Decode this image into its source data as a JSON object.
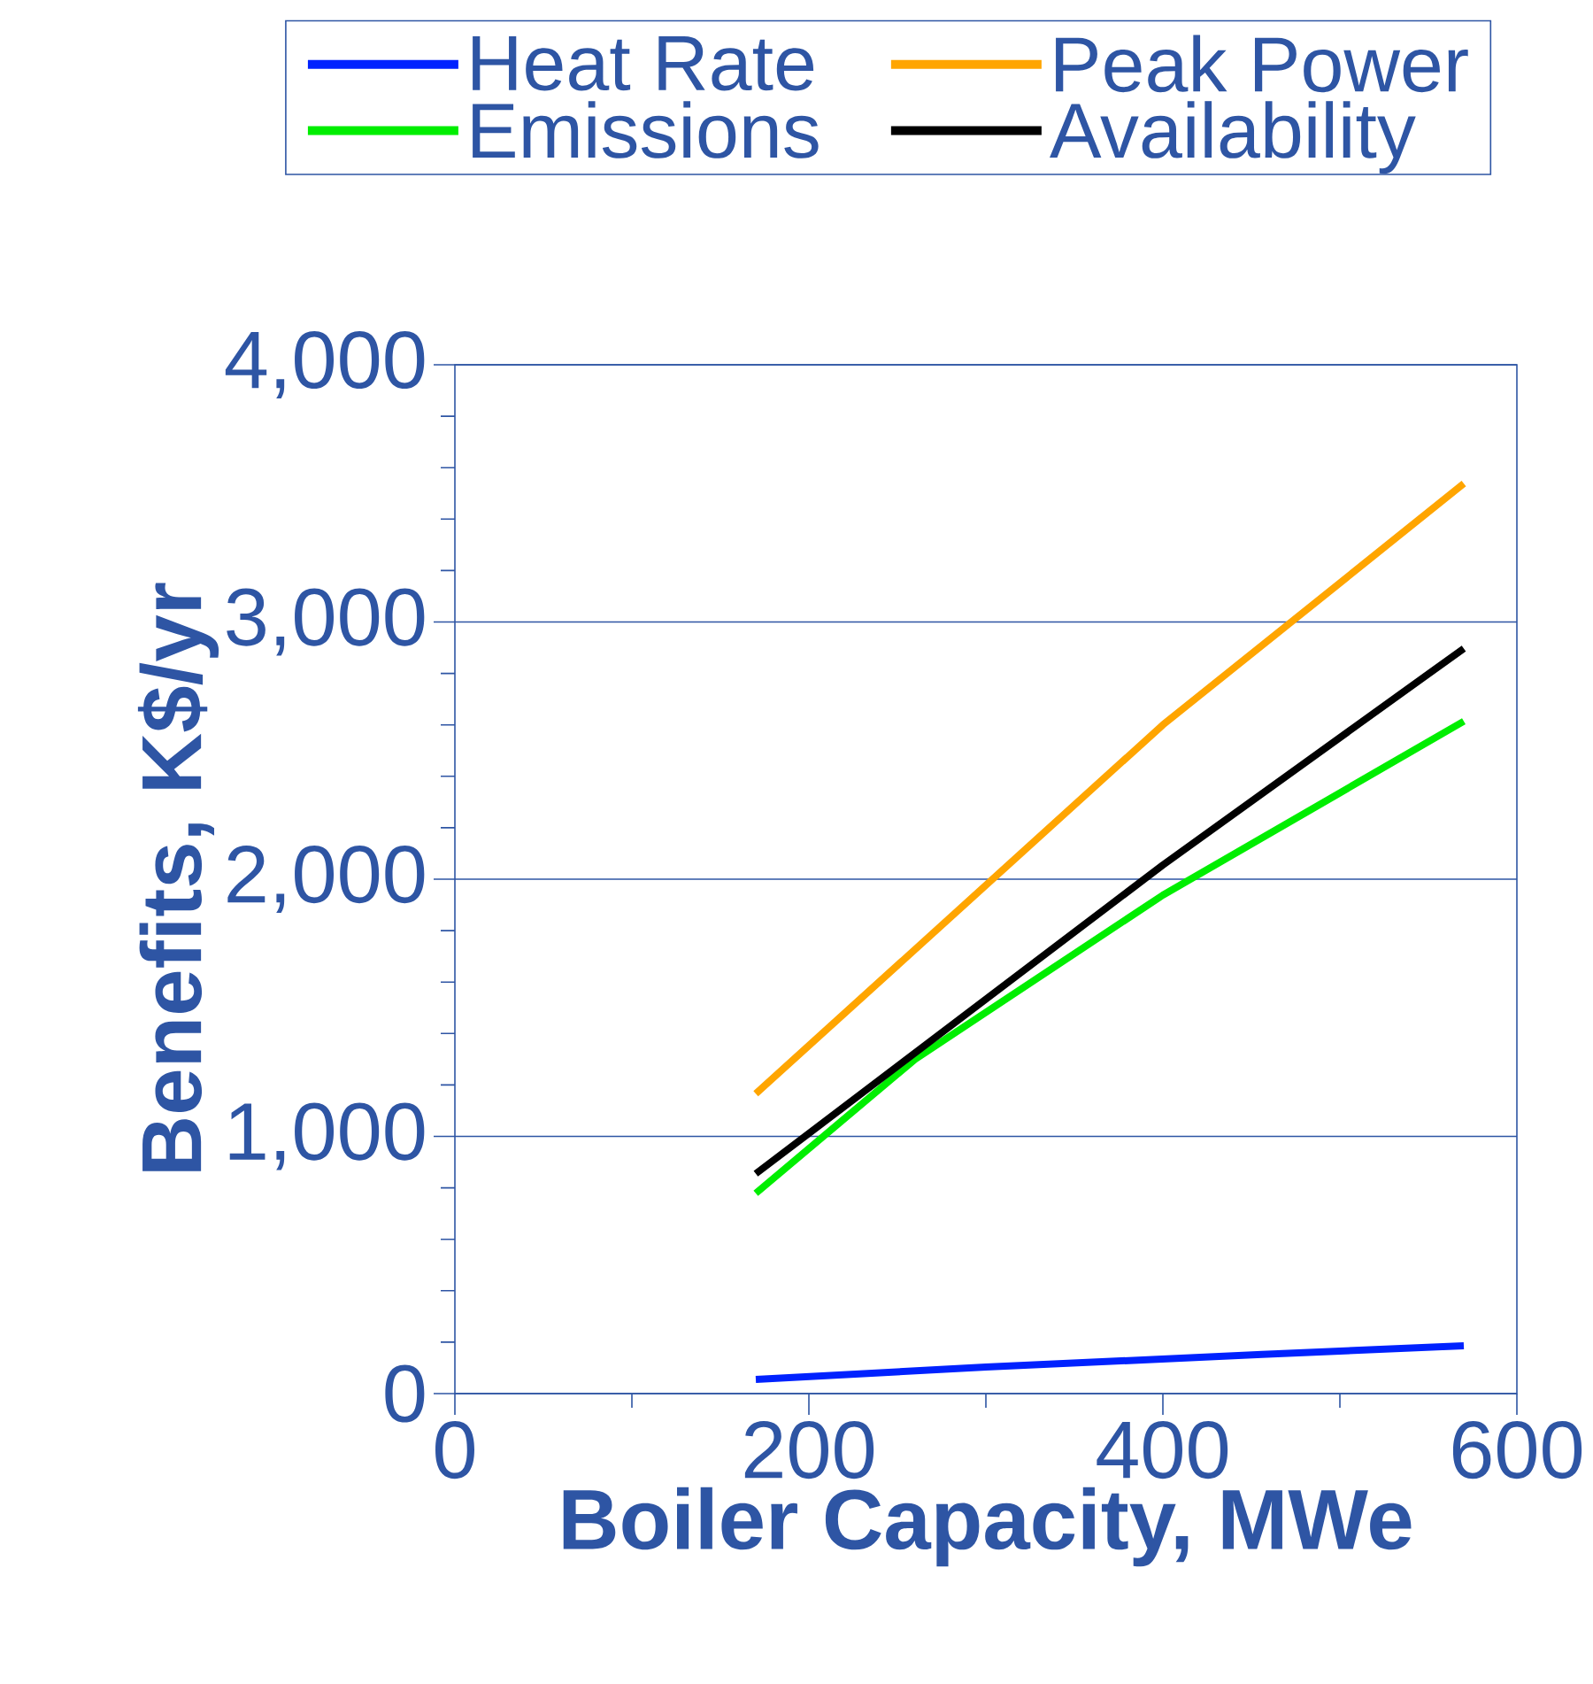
{
  "chart_data": {
    "type": "line",
    "xlabel": "Boiler Capacity, MWe",
    "ylabel": "Benefits, K$/yr",
    "xlim": [
      0,
      600
    ],
    "xticks": [
      0,
      200,
      400,
      600
    ],
    "ylim": [
      0,
      4000
    ],
    "yticks": [
      {
        "value": 0,
        "label": "0"
      },
      {
        "value": 1000,
        "label": "1,000"
      },
      {
        "value": 2000,
        "label": "2,000"
      },
      {
        "value": 3000,
        "label": "3,000"
      },
      {
        "value": 4000,
        "label": "4,000"
      }
    ],
    "grid": "y",
    "legend": "top",
    "marker": "none",
    "line_style": "solid",
    "series": [
      {
        "name": "Heat Rate",
        "color": "#0022ff",
        "x": [
          170,
          300,
          456,
          570
        ],
        "values": [
          55,
          103,
          152,
          186
        ]
      },
      {
        "name": "Peak Power",
        "color": "#ffa500",
        "x": [
          170,
          400,
          570
        ],
        "values": [
          1166,
          2600,
          3538
        ]
      },
      {
        "name": "Emissions",
        "color": "#00ee00",
        "x": [
          170,
          260,
          400,
          570
        ],
        "values": [
          779,
          1300,
          1938,
          2614
        ]
      },
      {
        "name": "Availability",
        "color": "#000000",
        "x": [
          170,
          400,
          570
        ],
        "values": [
          855,
          2055,
          2897
        ]
      }
    ]
  }
}
